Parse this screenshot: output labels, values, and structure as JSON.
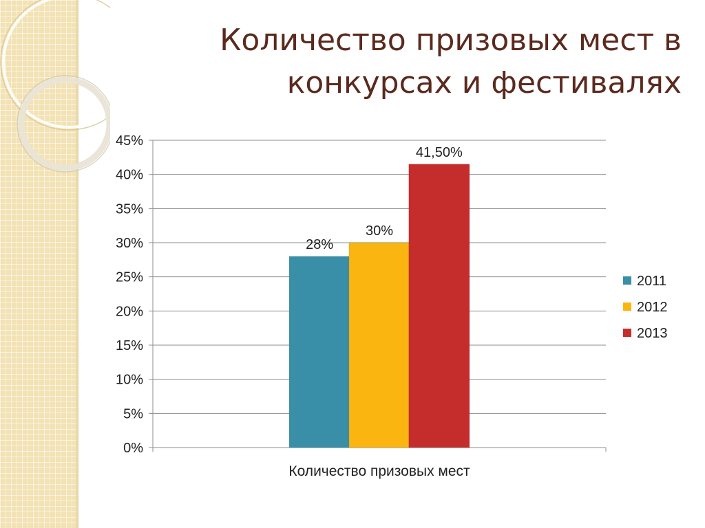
{
  "slide": {
    "title_line1": "Количество призовых мест в",
    "title_line2": "конкурсах и фестивалях",
    "title_color": "#5a2a1e",
    "background_accent": "#f2e2b4"
  },
  "chart_data": {
    "type": "bar",
    "title": "",
    "xlabel": "Количество призовых мест",
    "ylabel": "",
    "ylim": [
      0,
      45
    ],
    "yticks": [
      0,
      5,
      10,
      15,
      20,
      25,
      30,
      35,
      40,
      45
    ],
    "ytick_labels": [
      "0%",
      "5%",
      "10%",
      "15%",
      "20%",
      "25%",
      "30%",
      "35%",
      "40%",
      "45%"
    ],
    "grid": true,
    "legend_position": "right",
    "categories": [
      "Количество призовых мест"
    ],
    "series": [
      {
        "name": "2011",
        "values": [
          28
        ],
        "label": "28%",
        "color": "#3a8fa8"
      },
      {
        "name": "2012",
        "values": [
          30
        ],
        "label": "30%",
        "color": "#fbb510"
      },
      {
        "name": "2013",
        "values": [
          41.5
        ],
        "label": "41,50%",
        "color": "#c52c2c"
      }
    ]
  }
}
